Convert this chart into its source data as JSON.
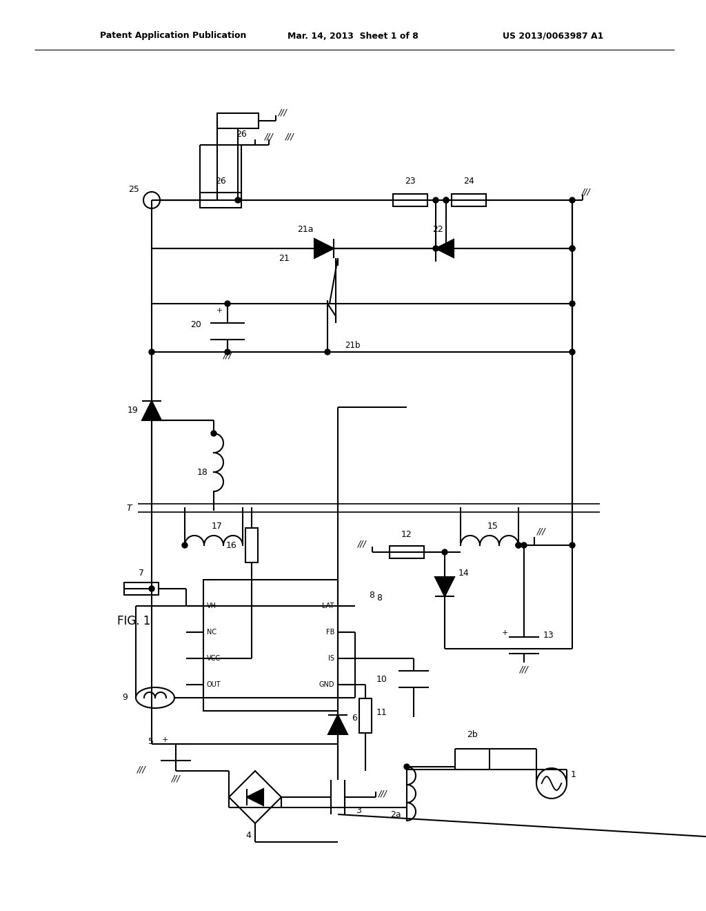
{
  "title_left": "Patent Application Publication",
  "title_mid": "Mar. 14, 2013  Sheet 1 of 8",
  "title_right": "US 2013/0063987 A1",
  "fig_label": "FIG. 1",
  "background": "#ffffff",
  "lc": "#000000",
  "lw": 1.5
}
